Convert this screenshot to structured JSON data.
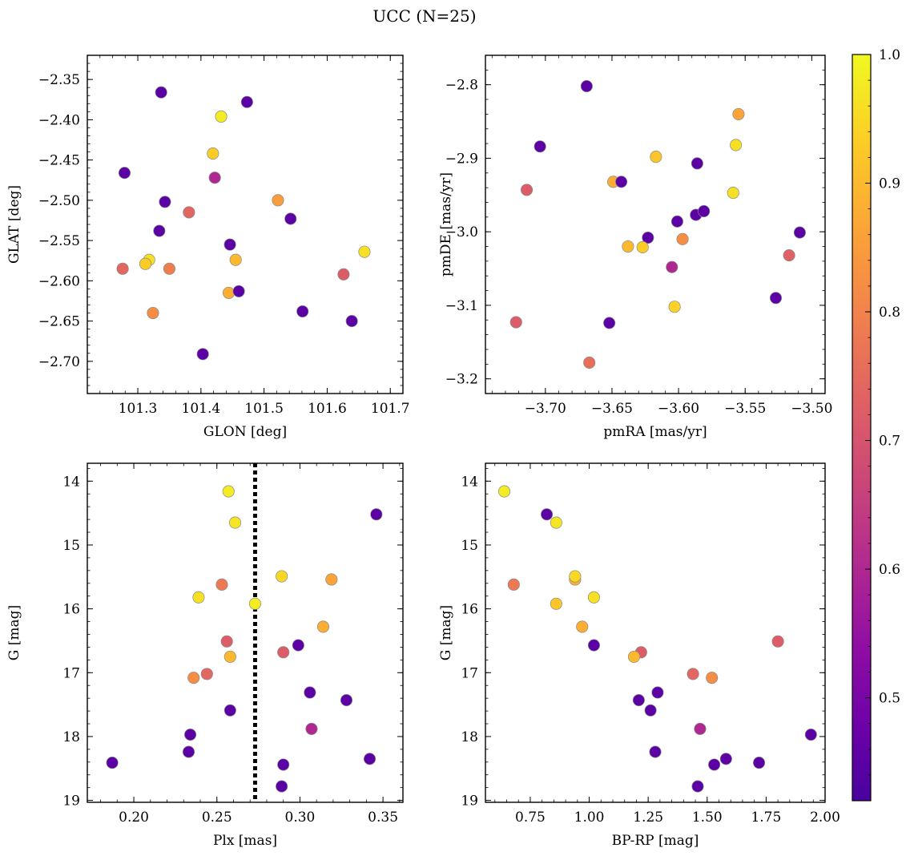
{
  "figure": {
    "title": "UCC (N=25)"
  },
  "colorbar": {
    "range": [
      0.42,
      1.0
    ],
    "ticks": [
      "0.5",
      "0.6",
      "0.7",
      "0.8",
      "0.9",
      "1.0"
    ],
    "tick_values": [
      0.5,
      0.6,
      0.7,
      0.8,
      0.9,
      1.0
    ],
    "colormap": "plasma"
  },
  "chart_data": [
    {
      "type": "scatter",
      "xlabel": "GLON [deg]",
      "ylabel": "GLAT [deg]",
      "xlim": [
        101.22,
        101.72
      ],
      "ylim": [
        -2.74,
        -2.32
      ],
      "xticks": [
        101.3,
        101.4,
        101.5,
        101.6,
        101.7
      ],
      "xtick_labels": [
        "101.3",
        "101.4",
        "101.5",
        "101.6",
        "101.7"
      ],
      "yticks": [
        -2.35,
        -2.4,
        -2.45,
        -2.5,
        -2.55,
        -2.6,
        -2.65,
        -2.7
      ],
      "ytick_labels": [
        "−2.35",
        "−2.40",
        "−2.45",
        "−2.50",
        "−2.55",
        "−2.60",
        "−2.65",
        "−2.70"
      ],
      "x": [
        101.337,
        101.473,
        101.432,
        101.279,
        101.419,
        101.422,
        101.343,
        101.522,
        101.381,
        101.542,
        101.334,
        101.446,
        101.659,
        101.455,
        101.318,
        101.312,
        101.276,
        101.35,
        101.626,
        101.444,
        101.46,
        101.324,
        101.561,
        101.639,
        101.403
      ],
      "y": [
        -2.366,
        -2.378,
        -2.396,
        -2.466,
        -2.442,
        -2.472,
        -2.502,
        -2.5,
        -2.515,
        -2.523,
        -2.538,
        -2.555,
        -2.564,
        -2.574,
        -2.574,
        -2.579,
        -2.585,
        -2.585,
        -2.592,
        -2.615,
        -2.613,
        -2.64,
        -2.638,
        -2.65,
        -2.691
      ],
      "color_values": [
        0.45,
        0.45,
        0.98,
        0.45,
        0.93,
        0.6,
        0.45,
        0.85,
        0.74,
        0.45,
        0.45,
        0.45,
        0.96,
        0.9,
        0.96,
        0.93,
        0.74,
        0.79,
        0.72,
        0.88,
        0.45,
        0.82,
        0.45,
        0.45,
        0.45
      ]
    },
    {
      "type": "scatter",
      "xlabel": "pmRA [mas/yr]",
      "ylabel": "pmDE [mas/yr]",
      "xlim": [
        -3.745,
        -3.49
      ],
      "ylim": [
        -3.22,
        -2.76
      ],
      "xticks": [
        -3.7,
        -3.65,
        -3.6,
        -3.55,
        -3.5
      ],
      "xtick_labels": [
        "−3.70",
        "−3.65",
        "−3.60",
        "−3.55",
        "−3.50"
      ],
      "yticks": [
        -2.8,
        -2.9,
        -3.0,
        -3.1,
        -3.2
      ],
      "ytick_labels": [
        "−2.8",
        "−2.9",
        "−3.0",
        "−3.1",
        "−3.2"
      ],
      "x": [
        -3.669,
        -3.555,
        -3.704,
        -3.557,
        -3.617,
        -3.586,
        -3.649,
        -3.643,
        -3.714,
        -3.559,
        -3.601,
        -3.587,
        -3.581,
        -3.509,
        -3.623,
        -3.597,
        -3.638,
        -3.627,
        -3.517,
        -3.605,
        -3.603,
        -3.527,
        -3.652,
        -3.722,
        -3.667
      ],
      "y": [
        -2.802,
        -2.84,
        -2.884,
        -2.882,
        -2.898,
        -2.907,
        -2.932,
        -2.932,
        -2.943,
        -2.947,
        -2.986,
        -2.977,
        -2.972,
        -3.001,
        -3.008,
        -3.01,
        -3.02,
        -3.021,
        -3.032,
        -3.048,
        -3.102,
        -3.09,
        -3.124,
        -3.123,
        -3.178
      ],
      "color_values": [
        0.45,
        0.86,
        0.45,
        0.96,
        0.92,
        0.45,
        0.88,
        0.45,
        0.72,
        0.96,
        0.45,
        0.45,
        0.45,
        0.45,
        0.45,
        0.82,
        0.9,
        0.93,
        0.73,
        0.6,
        0.94,
        0.45,
        0.45,
        0.72,
        0.76
      ]
    },
    {
      "type": "scatter",
      "xlabel": "Plx [mas]",
      "ylabel": "G [mag]",
      "xlim": [
        0.172,
        0.362
      ],
      "ylim": [
        19.03,
        13.72
      ],
      "xticks": [
        0.2,
        0.25,
        0.3,
        0.35
      ],
      "xtick_labels": [
        "0.20",
        "0.25",
        "0.30",
        "0.35"
      ],
      "yticks": [
        14,
        15,
        16,
        17,
        18,
        19
      ],
      "ytick_labels": [
        "14",
        "15",
        "16",
        "17",
        "18",
        "19"
      ],
      "vline_x": 0.273,
      "x": [
        0.257,
        0.261,
        0.346,
        0.289,
        0.319,
        0.253,
        0.239,
        0.273,
        0.314,
        0.256,
        0.299,
        0.258,
        0.29,
        0.244,
        0.236,
        0.306,
        0.328,
        0.258,
        0.307,
        0.234,
        0.233,
        0.342,
        0.29,
        0.187,
        0.289
      ],
      "y": [
        14.16,
        14.65,
        14.52,
        15.49,
        15.54,
        15.62,
        15.82,
        15.92,
        16.28,
        16.51,
        16.57,
        16.75,
        16.68,
        17.02,
        17.08,
        17.31,
        17.43,
        17.59,
        17.88,
        17.97,
        18.24,
        18.35,
        18.44,
        18.41,
        18.78
      ],
      "color_values": [
        0.98,
        0.97,
        0.45,
        0.95,
        0.86,
        0.78,
        0.96,
        0.98,
        0.88,
        0.72,
        0.45,
        0.9,
        0.72,
        0.74,
        0.82,
        0.45,
        0.45,
        0.45,
        0.6,
        0.45,
        0.45,
        0.45,
        0.45,
        0.45,
        0.45
      ]
    },
    {
      "type": "scatter",
      "xlabel": "BP-RP [mag]",
      "ylabel": "G [mag]",
      "xlim": [
        0.56,
        2.0
      ],
      "ylim": [
        19.03,
        13.72
      ],
      "xticks": [
        0.75,
        1.0,
        1.25,
        1.5,
        1.75,
        2.0
      ],
      "xtick_labels": [
        "0.75",
        "1.00",
        "1.25",
        "1.50",
        "1.75",
        "2.00"
      ],
      "yticks": [
        14,
        15,
        16,
        17,
        18,
        19
      ],
      "ytick_labels": [
        "14",
        "15",
        "16",
        "17",
        "18",
        "19"
      ],
      "x": [
        0.64,
        0.82,
        0.86,
        0.94,
        0.94,
        0.68,
        1.02,
        0.86,
        0.97,
        1.02,
        1.22,
        1.19,
        1.8,
        1.44,
        1.52,
        1.29,
        1.21,
        1.26,
        1.47,
        1.94,
        1.28,
        1.58,
        1.53,
        1.72,
        1.46
      ],
      "y": [
        14.16,
        14.52,
        14.65,
        15.54,
        15.49,
        15.62,
        15.82,
        15.92,
        16.28,
        16.57,
        16.68,
        16.75,
        16.51,
        17.02,
        17.08,
        17.31,
        17.43,
        17.59,
        17.88,
        17.97,
        18.24,
        18.35,
        18.44,
        18.41,
        18.78
      ],
      "color_values": [
        0.98,
        0.45,
        0.97,
        0.88,
        0.95,
        0.78,
        0.96,
        0.92,
        0.88,
        0.45,
        0.72,
        0.9,
        0.72,
        0.74,
        0.82,
        0.45,
        0.45,
        0.45,
        0.6,
        0.45,
        0.45,
        0.45,
        0.45,
        0.45,
        0.45
      ]
    }
  ]
}
